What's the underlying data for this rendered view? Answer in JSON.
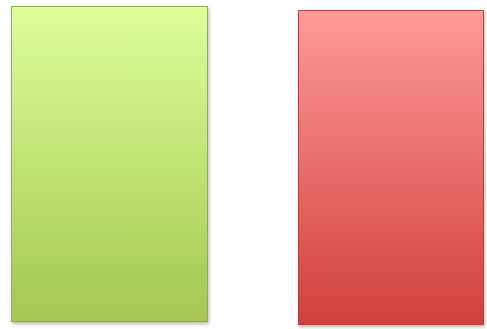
{
  "panels": [
    {
      "name": "green-panel",
      "color_top": "#ddfe99",
      "color_bottom": "#a3c751",
      "border_color": "#8fae46"
    },
    {
      "name": "red-panel",
      "color_top": "#fe9a98",
      "color_bottom": "#d0403d",
      "border_color": "#b2403d"
    }
  ]
}
